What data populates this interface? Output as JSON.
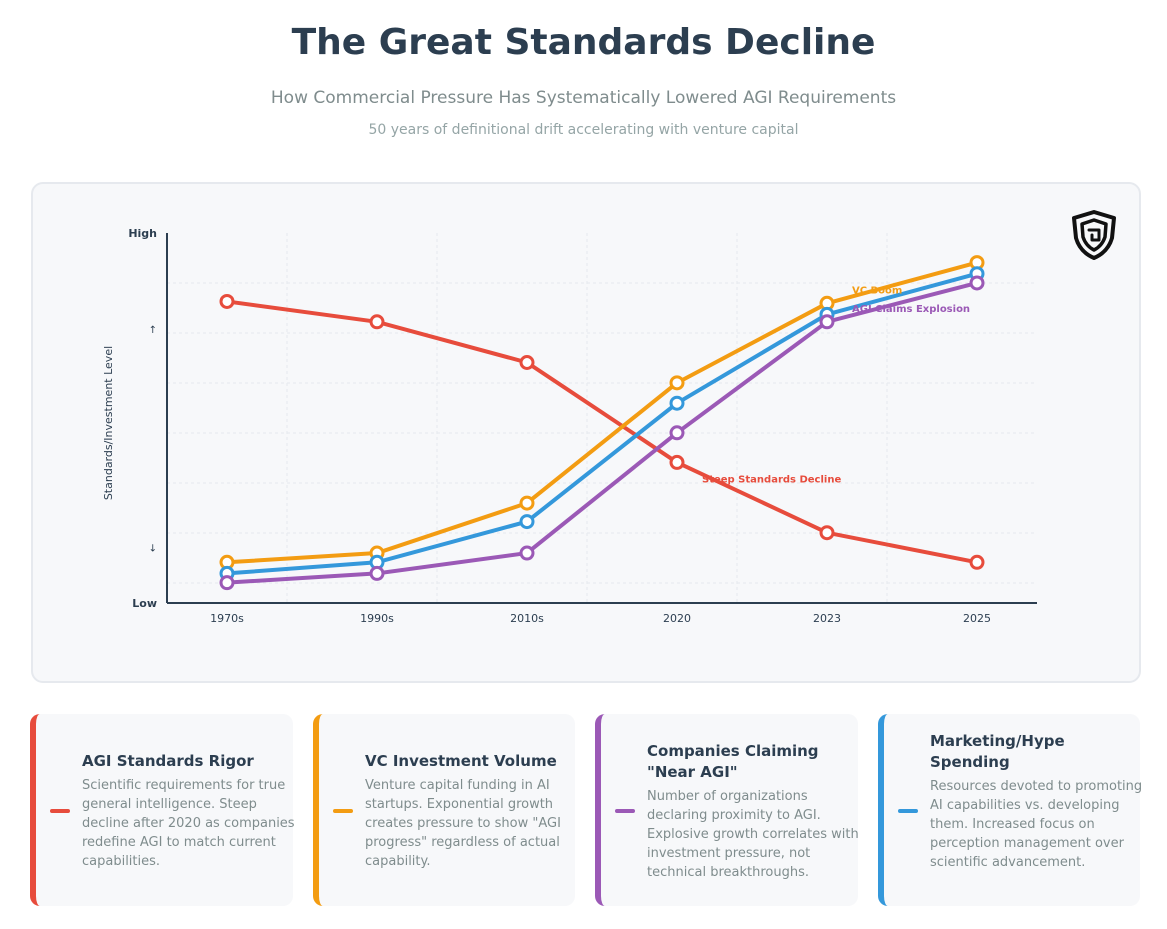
{
  "header": {
    "title": "The Great Standards Decline",
    "subtitle": "How Commercial Pressure Has Systematically Lowered AGI Requirements",
    "tagline": "50 years of definitional drift accelerating with venture capital"
  },
  "logo": {
    "icon": "shield-maze-icon"
  },
  "chart_data": {
    "type": "line",
    "categories": [
      "1970s",
      "1990s",
      "2010s",
      "2020",
      "2023",
      "2025"
    ],
    "ylabel": "Standards/Investment Level",
    "xlabel": "",
    "y_ticks": [
      {
        "value": 0,
        "label": "Low"
      },
      {
        "value": 15,
        "label": "↓"
      },
      {
        "value": 74,
        "label": "↑"
      },
      {
        "value": 100,
        "label": "High"
      }
    ],
    "ylim": [
      0,
      100
    ],
    "grid": true,
    "series": [
      {
        "name": "AGI Standards Rigor",
        "color": "#e74c3c",
        "values": [
          81.5,
          76,
          65,
          38,
          19,
          11
        ]
      },
      {
        "name": "VC Investment Volume",
        "color": "#f39c12",
        "values": [
          11,
          13.5,
          27,
          59.5,
          81,
          92
        ]
      },
      {
        "name": "Marketing/Hype Spending",
        "color": "#3498db",
        "values": [
          8,
          11,
          22,
          54,
          78,
          89
        ]
      },
      {
        "name": "Companies Claiming \"Near AGI\"",
        "color": "#9b59b6",
        "values": [
          5.5,
          8,
          13.5,
          46,
          76,
          86.5
        ]
      }
    ],
    "annotations": [
      {
        "text": "VC Boom",
        "x_index": 4,
        "series": 1,
        "color": "#f39c12"
      },
      {
        "text": "AGI Claims Explosion",
        "x_index": 4,
        "series": 3,
        "color": "#9b59b6"
      },
      {
        "text": "Steep Standards Decline",
        "x_index": 3,
        "series": 0,
        "color": "#e74c3c"
      }
    ]
  },
  "cards": [
    {
      "title": "AGI Standards Rigor",
      "text": "Scientific requirements for true general intelligence. Steep decline after 2020 as companies redefine AGI to match current capabilities.",
      "color": "#e74c3c"
    },
    {
      "title": "VC Investment Volume",
      "text": "Venture capital funding in AI startups. Exponential growth creates pressure to show \"AGI progress\" regardless of actual capability.",
      "color": "#f39c12"
    },
    {
      "title": "Companies Claiming \"Near AGI\"",
      "text": "Number of organizations declaring proximity to AGI. Explosive growth correlates with investment pressure, not technical breakthroughs.",
      "color": "#9b59b6"
    },
    {
      "title": "Marketing/Hype Spending",
      "text": "Resources devoted to promoting AI capabilities vs. developing them. Increased focus on perception management over scientific advancement.",
      "color": "#3498db"
    }
  ]
}
